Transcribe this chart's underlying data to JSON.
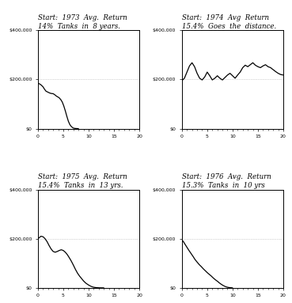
{
  "titles": [
    "Start:  1973  Avg.  Return\n14%  Tanks  in  8 years.",
    "Start:  1974  Avg  Return\n15.4%  Goes  the  distance.",
    "Start:  1975  Avg.  Return\n15.4%  Tanks  in  13 yrs.",
    "Start:  1976  Avg.  Return\n15.3%  Tanks  in  10 yrs"
  ],
  "line_color": "#000000",
  "grid_color": "#aaaaaa",
  "ylim": [
    0,
    400000
  ],
  "xlim": [
    0,
    20
  ],
  "yticks": [
    0,
    200000,
    400000
  ],
  "ytick_labels": [
    "$0",
    "$200,000",
    "$400,000"
  ],
  "xticks": [
    0,
    5,
    10,
    15,
    20
  ],
  "series": {
    "1973": {
      "x": [
        0,
        0.3,
        0.6,
        1,
        1.3,
        1.6,
        2,
        2.3,
        2.6,
        3,
        3.3,
        3.6,
        3.8,
        4.0,
        4.2,
        4.5,
        4.8,
        5.1,
        5.4,
        5.7,
        6.0,
        6.3,
        6.6,
        6.9,
        7.2,
        7.5,
        7.8,
        8.0
      ],
      "y": [
        185000,
        182000,
        178000,
        170000,
        160000,
        152000,
        148000,
        145000,
        143000,
        142000,
        138000,
        133000,
        130000,
        128000,
        125000,
        118000,
        108000,
        92000,
        72000,
        50000,
        30000,
        16000,
        8000,
        3000,
        1000,
        500,
        100,
        0
      ]
    },
    "1974": {
      "x": [
        0,
        0.5,
        1,
        1.5,
        2,
        2.5,
        3,
        3.5,
        4,
        4.5,
        5,
        5.5,
        6,
        6.5,
        7,
        7.5,
        8,
        8.5,
        9,
        9.5,
        10,
        10.5,
        11,
        11.5,
        12,
        12.5,
        13,
        13.5,
        14,
        14.5,
        15,
        15.5,
        16,
        16.5,
        17,
        17.5,
        18,
        18.5,
        19,
        19.5,
        20
      ],
      "y": [
        195000,
        205000,
        230000,
        255000,
        268000,
        252000,
        225000,
        205000,
        198000,
        210000,
        230000,
        215000,
        198000,
        205000,
        215000,
        205000,
        198000,
        208000,
        218000,
        225000,
        215000,
        205000,
        218000,
        230000,
        248000,
        258000,
        252000,
        260000,
        268000,
        258000,
        252000,
        248000,
        255000,
        260000,
        252000,
        248000,
        240000,
        232000,
        225000,
        220000,
        218000
      ]
    },
    "1975": {
      "x": [
        0,
        0.3,
        0.6,
        1,
        1.4,
        1.8,
        2.2,
        2.6,
        3,
        3.4,
        3.8,
        4.2,
        4.6,
        5,
        5.4,
        5.8,
        6.2,
        6.6,
        7,
        7.4,
        7.8,
        8.2,
        8.6,
        9,
        9.4,
        9.8,
        10.2,
        10.6,
        11,
        11.4,
        11.8,
        12.2,
        12.6,
        13
      ],
      "y": [
        200000,
        205000,
        210000,
        208000,
        200000,
        188000,
        172000,
        158000,
        148000,
        145000,
        148000,
        152000,
        155000,
        152000,
        145000,
        135000,
        122000,
        108000,
        92000,
        75000,
        60000,
        48000,
        38000,
        28000,
        20000,
        14000,
        9000,
        5000,
        2500,
        1200,
        500,
        150,
        30,
        0
      ]
    },
    "1976": {
      "x": [
        0,
        0.3,
        0.6,
        1,
        1.4,
        1.8,
        2.2,
        2.6,
        3,
        3.4,
        3.8,
        4.2,
        4.6,
        5,
        5.4,
        5.8,
        6.2,
        6.6,
        7,
        7.4,
        7.8,
        8.2,
        8.6,
        9,
        9.4,
        9.8,
        10
      ],
      "y": [
        195000,
        188000,
        178000,
        165000,
        152000,
        140000,
        128000,
        115000,
        105000,
        95000,
        87000,
        78000,
        70000,
        62000,
        55000,
        48000,
        40000,
        33000,
        27000,
        20000,
        14000,
        9000,
        5000,
        2500,
        1000,
        300,
        0
      ]
    }
  }
}
